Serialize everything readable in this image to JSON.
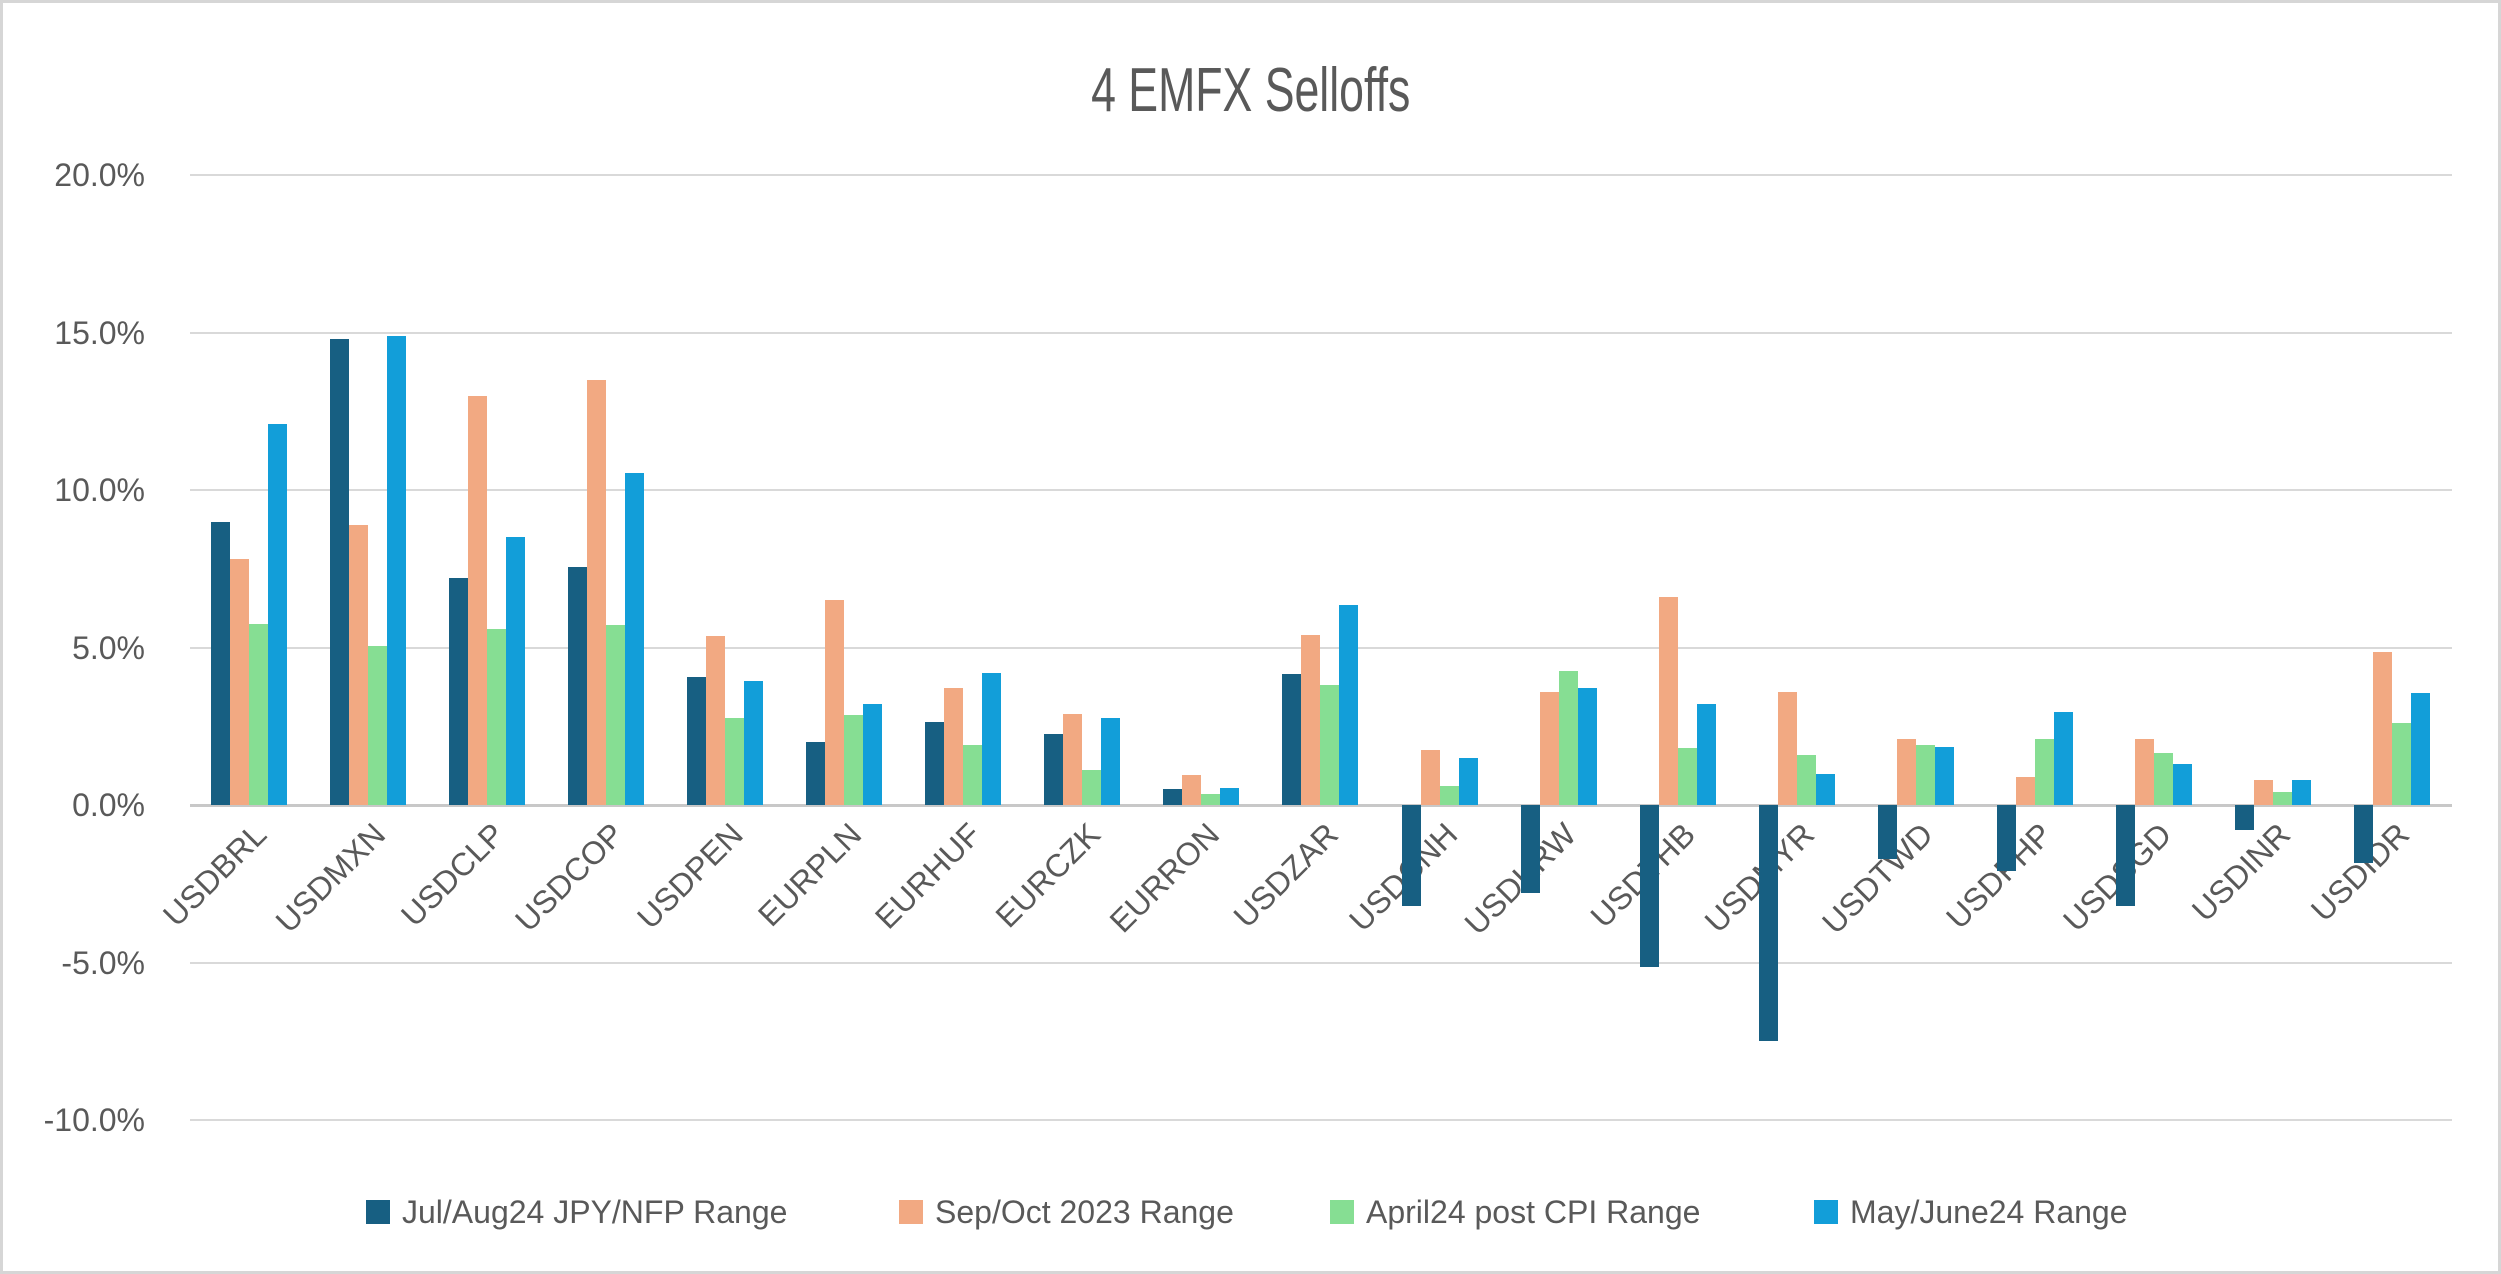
{
  "title": "4 EMFX Selloffs",
  "colors": {
    "background": "#FFFFFF",
    "frame_border": "#D6D6D6",
    "gridline": "#D9D9D9",
    "axis_line": "#C8C8C8",
    "text": "#595959",
    "series_navy": "#175F82",
    "series_orange": "#F2A982",
    "series_green": "#86DE93",
    "series_blue": "#129ED9"
  },
  "y_axis": {
    "tick_labels": [
      "20.0%",
      "15.0%",
      "10.0%",
      "5.0%",
      "0.0%",
      "-5.0%",
      "-10.0%"
    ],
    "tick_values": [
      20,
      15,
      10,
      5,
      0,
      -5,
      -10
    ]
  },
  "chart_data": {
    "type": "bar",
    "title": "4 EMFX Selloffs",
    "xlabel": "",
    "ylabel": "",
    "ylim": [
      -10,
      20
    ],
    "grid": "horizontal",
    "legend_position": "bottom",
    "categories": [
      "USDBRL",
      "USDMXN",
      "USDCLP",
      "USDCOP",
      "USDPEN",
      "EURPLN",
      "EURHUF",
      "EURCZK",
      "EURRON",
      "USDZAR",
      "USDCNH",
      "USDKRW",
      "USDTHB",
      "USDMYR",
      "USDTWD",
      "USDPHP",
      "USDSGD",
      "USDINR",
      "USDIDR"
    ],
    "series": [
      {
        "name": "Jul/Aug24 JPY/NFP Range",
        "color": "#175F82",
        "values": [
          9.0,
          14.8,
          7.2,
          7.55,
          4.05,
          2.0,
          2.65,
          2.25,
          0.5,
          4.15,
          -3.2,
          -2.8,
          -5.15,
          -7.5,
          -1.7,
          -2.1,
          -3.2,
          -0.8,
          -1.85
        ]
      },
      {
        "name": "Sep/Oct 2023 Range",
        "color": "#F2A982",
        "values": [
          7.8,
          8.9,
          13.0,
          13.5,
          5.35,
          6.5,
          3.7,
          2.9,
          0.95,
          5.4,
          1.75,
          3.6,
          6.6,
          3.6,
          2.1,
          0.9,
          2.1,
          0.8,
          4.85
        ]
      },
      {
        "name": "April24 post CPI Range",
        "color": "#86DE93",
        "values": [
          5.75,
          5.05,
          5.6,
          5.7,
          2.75,
          2.85,
          1.9,
          1.1,
          0.35,
          3.8,
          0.6,
          4.25,
          1.8,
          1.6,
          1.9,
          2.1,
          1.65,
          0.4,
          2.6
        ]
      },
      {
        "name": "May/June24 Range",
        "color": "#129ED9",
        "values": [
          12.1,
          14.9,
          8.5,
          10.55,
          3.95,
          3.2,
          4.2,
          2.75,
          0.55,
          6.35,
          1.5,
          3.7,
          3.2,
          1.0,
          1.85,
          2.95,
          1.3,
          0.8,
          3.55
        ]
      }
    ]
  }
}
